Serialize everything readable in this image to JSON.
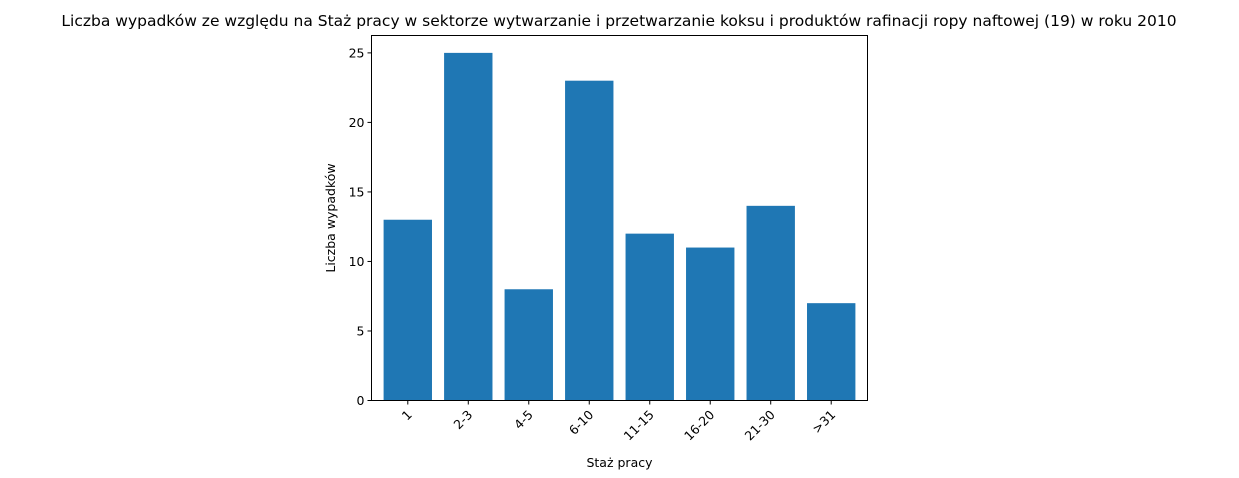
{
  "chart_data": {
    "type": "bar",
    "title": "Liczba wypadków ze względu na Staż pracy w sektorze wytwarzanie i przetwarzanie koksu i produktów rafinacji ropy naftowej  (19)   w roku 2010",
    "xlabel": "Staż pracy",
    "ylabel": "Liczba wypadków",
    "categories": [
      "1",
      "2-3",
      "4-5",
      "6-10",
      "11-15",
      "16-20",
      "21-30",
      ">31"
    ],
    "values": [
      13,
      25,
      8,
      23,
      12,
      11,
      14,
      7
    ],
    "ylim": [
      0,
      26.25
    ],
    "yticks": [
      0,
      5,
      10,
      15,
      20,
      25
    ],
    "bar_color": "#1f77b4",
    "grid": false,
    "xtick_rotation": 45
  }
}
